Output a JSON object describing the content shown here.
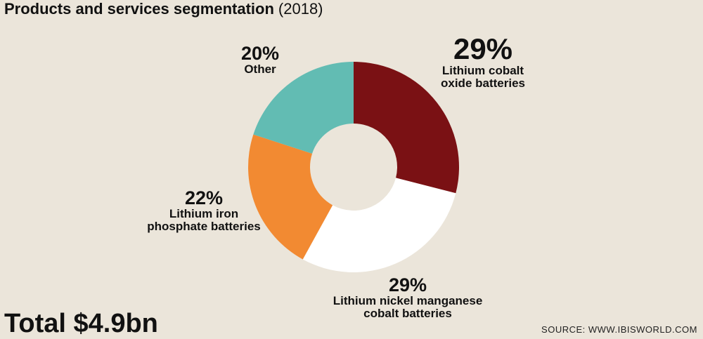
{
  "header": {
    "title": "Products and services segmentation",
    "year": "(2018)"
  },
  "footer": {
    "total": "Total $4.9bn",
    "source": "SOURCE: WWW.IBISWORLD.COM"
  },
  "chart_data": {
    "type": "pie",
    "variant": "donut",
    "title": "Products and services segmentation (2018)",
    "unit": "%",
    "slices": [
      {
        "label": "Lithium cobalt oxide batteries",
        "label_lines": [
          "Lithium cobalt",
          "oxide batteries"
        ],
        "value": 29,
        "value_text": "29%",
        "color": "#7a1114"
      },
      {
        "label": "Lithium nickel manganese cobalt batteries",
        "label_lines": [
          "Lithium nickel manganese",
          "cobalt batteries"
        ],
        "value": 29,
        "value_text": "29%",
        "color": "#ffffff"
      },
      {
        "label": "Lithium iron phosphate batteries",
        "label_lines": [
          "Lithium iron",
          "phosphate batteries"
        ],
        "value": 22,
        "value_text": "22%",
        "color": "#f28a32"
      },
      {
        "label": "Other",
        "label_lines": [
          "Other"
        ],
        "value": 20,
        "value_text": "20%",
        "color": "#62bcb3"
      }
    ],
    "legend": "none"
  }
}
